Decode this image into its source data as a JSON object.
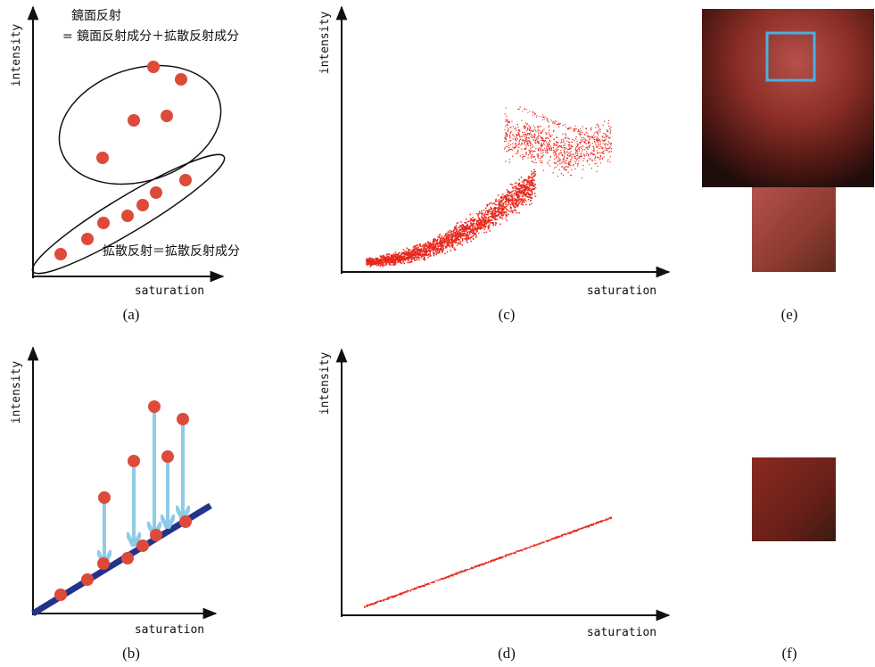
{
  "panels": [
    {
      "label": "(a)",
      "y_axis": "intensity",
      "x_axis": "saturation",
      "annotations": [
        "鏡面反射",
        "= 鏡面反射成分＋拡散反射成分",
        "拡散反射＝拡散反射成分"
      ]
    },
    {
      "label": "(b)",
      "y_axis": "intensity",
      "x_axis": "saturation"
    },
    {
      "label": "(c)",
      "y_axis": "intensity",
      "x_axis": "saturation"
    },
    {
      "label": "(d)",
      "y_axis": "intensity",
      "x_axis": "saturation"
    },
    {
      "label": "(e)"
    },
    {
      "label": "(f)"
    }
  ]
}
